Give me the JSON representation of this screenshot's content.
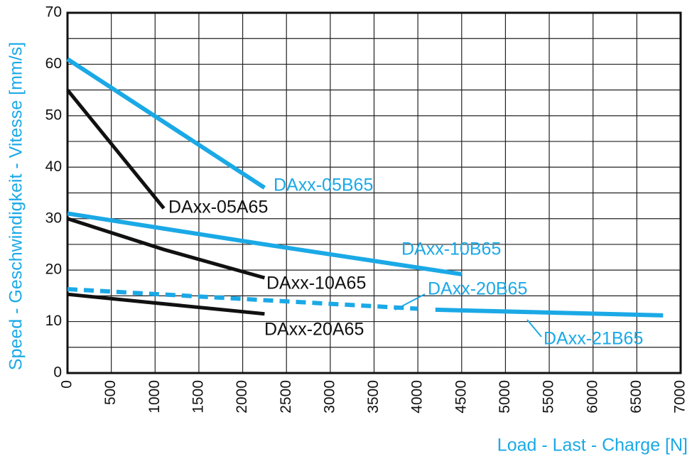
{
  "chart_data": {
    "type": "line",
    "xlabel": "Load - Last - Charge [N]",
    "ylabel": "Speed - Geschwindigkeit - Vitesse [mm/s]",
    "xlim": [
      0,
      7000
    ],
    "xticks": [
      0,
      500,
      1000,
      1500,
      2000,
      2500,
      3000,
      3500,
      4000,
      4500,
      5000,
      5500,
      6000,
      6500,
      7000
    ],
    "ylim": [
      0,
      70
    ],
    "yticks": [
      0,
      10,
      20,
      30,
      40,
      50,
      60,
      70
    ],
    "y_minor_grid": [
      5,
      15,
      25,
      35,
      45,
      55,
      65
    ],
    "grid": true,
    "series": [
      {
        "name": "DAxx-05B65",
        "color": "#1ba9e6",
        "x": [
          0,
          2250
        ],
        "values": [
          61,
          36
        ]
      },
      {
        "name": "DAxx-05A65",
        "color": "#111111",
        "x": [
          0,
          1100
        ],
        "values": [
          55,
          32
        ]
      },
      {
        "name": "DAxx-10B65",
        "color": "#1ba9e6",
        "x": [
          0,
          2250,
          4500
        ],
        "values": [
          31,
          25,
          19.2
        ]
      },
      {
        "name": "DAxx-10A65",
        "color": "#111111",
        "x": [
          0,
          1100,
          2250
        ],
        "values": [
          30,
          24,
          18.5
        ]
      },
      {
        "name": "DAxx-20B65",
        "color": "#1ba9e6",
        "dashed": true,
        "x": [
          0,
          4000
        ],
        "values": [
          16.3,
          12.5
        ]
      },
      {
        "name": "DAxx-20A65",
        "color": "#111111",
        "x": [
          0,
          2250
        ],
        "values": [
          15.3,
          11.5
        ]
      },
      {
        "name": "DAxx-21B65",
        "color": "#1ba9e6",
        "x": [
          4200,
          6800
        ],
        "values": [
          12.3,
          11.2
        ]
      }
    ]
  }
}
